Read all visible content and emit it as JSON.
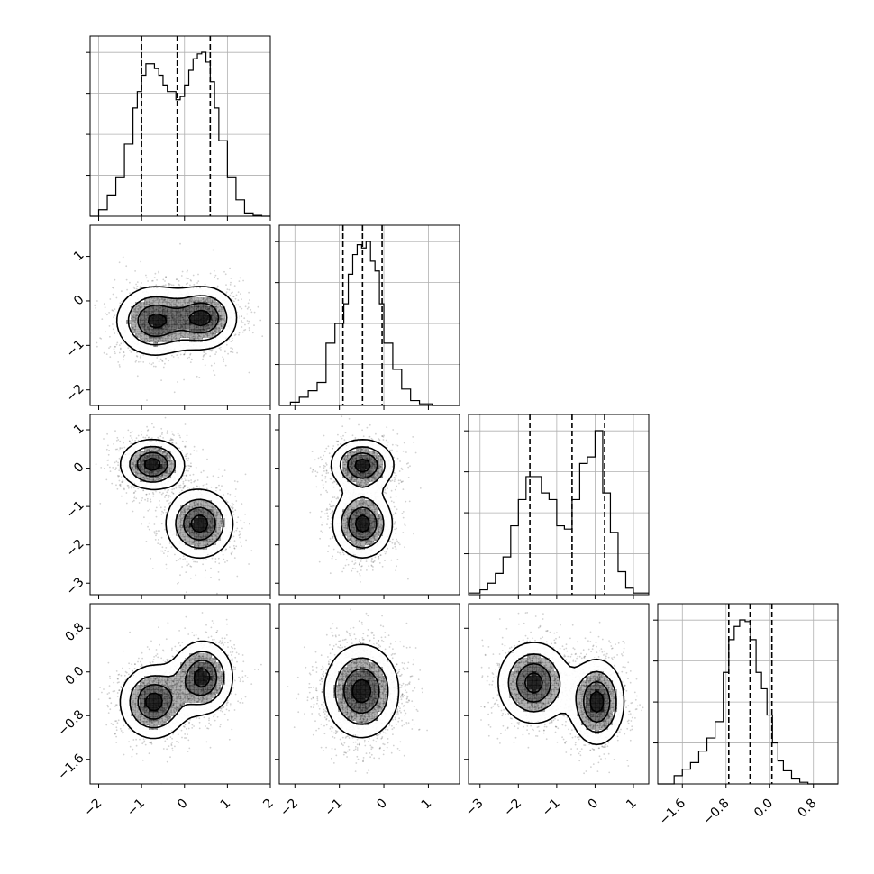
{
  "chart_data": {
    "type": "corner",
    "n_params": 4,
    "title": "",
    "params": [
      {
        "range": [
          -2.2,
          2.0
        ],
        "ticks": [
          -2,
          -1,
          0,
          1,
          2
        ],
        "tick_labels": [
          "−2",
          "−1",
          "0",
          "1",
          "2"
        ],
        "quantiles": [
          -1.0,
          -0.17,
          0.6
        ],
        "hist": {
          "edges": [
            -2.2,
            -2.0,
            -1.8,
            -1.6,
            -1.4,
            -1.2,
            -1.1,
            -1.0,
            -0.9,
            -0.8,
            -0.7,
            -0.6,
            -0.5,
            -0.4,
            -0.3,
            -0.2,
            -0.1,
            0.0,
            0.1,
            0.2,
            0.3,
            0.4,
            0.5,
            0.6,
            0.7,
            0.8,
            1.0,
            1.2,
            1.4,
            1.6,
            1.8,
            2.0
          ],
          "counts": [
            0.0,
            0.04,
            0.13,
            0.24,
            0.44,
            0.66,
            0.76,
            0.86,
            0.93,
            0.93,
            0.9,
            0.86,
            0.8,
            0.76,
            0.76,
            0.71,
            0.73,
            0.8,
            0.89,
            0.96,
            0.99,
            1.0,
            0.94,
            0.82,
            0.66,
            0.46,
            0.24,
            0.1,
            0.02,
            0.005,
            0.0
          ]
        }
      },
      {
        "range": [
          -2.35,
          1.7
        ],
        "ticks": [
          -2,
          -1,
          0,
          1
        ],
        "tick_labels": [
          "−2",
          "−1",
          "0",
          "1"
        ],
        "quantiles": [
          -0.92,
          -0.48,
          -0.04
        ],
        "hist": {
          "edges": [
            -2.35,
            -2.1,
            -1.9,
            -1.7,
            -1.5,
            -1.3,
            -1.1,
            -0.9,
            -0.8,
            -0.7,
            -0.6,
            -0.5,
            -0.4,
            -0.3,
            -0.2,
            -0.1,
            0.0,
            0.2,
            0.4,
            0.6,
            0.8,
            1.1,
            1.4,
            1.7
          ],
          "counts": [
            0.0,
            0.02,
            0.05,
            0.09,
            0.14,
            0.38,
            0.5,
            0.62,
            0.8,
            0.92,
            0.98,
            0.96,
            1.0,
            0.88,
            0.82,
            0.62,
            0.38,
            0.22,
            0.1,
            0.03,
            0.01,
            0.0,
            0.0
          ]
        }
      },
      {
        "range": [
          -3.3,
          1.4
        ],
        "ticks": [
          -3,
          -2,
          -1,
          0,
          1
        ],
        "tick_labels": [
          "−3",
          "−2",
          "−1",
          "0",
          "1"
        ],
        "quantiles": [
          -1.7,
          -0.6,
          0.25
        ],
        "hist": {
          "edges": [
            -3.3,
            -3.0,
            -2.8,
            -2.6,
            -2.4,
            -2.2,
            -2.0,
            -1.8,
            -1.6,
            -1.4,
            -1.2,
            -1.0,
            -0.8,
            -0.6,
            -0.4,
            -0.2,
            0.0,
            0.2,
            0.4,
            0.6,
            0.8,
            1.0,
            1.4
          ],
          "counts": [
            0.01,
            0.03,
            0.07,
            0.13,
            0.23,
            0.42,
            0.58,
            0.72,
            0.72,
            0.62,
            0.58,
            0.42,
            0.4,
            0.58,
            0.8,
            0.84,
            1.0,
            0.62,
            0.38,
            0.14,
            0.04,
            0.01
          ]
        }
      },
      {
        "range": [
          -2.05,
          1.25
        ],
        "ticks": [
          -1.6,
          -0.8,
          0.0,
          0.8
        ],
        "tick_labels": [
          "−1.6",
          "−0.8",
          "0.0",
          "0.8"
        ],
        "quantiles": [
          -0.75,
          -0.36,
          0.04
        ],
        "hist": {
          "edges": [
            -2.05,
            -1.75,
            -1.6,
            -1.45,
            -1.3,
            -1.15,
            -1.0,
            -0.85,
            -0.75,
            -0.65,
            -0.55,
            -0.45,
            -0.35,
            -0.25,
            -0.15,
            -0.05,
            0.05,
            0.15,
            0.25,
            0.4,
            0.55,
            0.7,
            0.85,
            1.25
          ],
          "counts": [
            0.0,
            0.05,
            0.09,
            0.13,
            0.2,
            0.28,
            0.38,
            0.68,
            0.88,
            0.96,
            1.0,
            0.99,
            0.88,
            0.68,
            0.58,
            0.42,
            0.25,
            0.14,
            0.08,
            0.03,
            0.01,
            0.0,
            0.0
          ]
        }
      }
    ],
    "joint": {
      "1_0": {
        "blobs": [
          {
            "cx": -0.7,
            "cy": -0.45,
            "sx": 0.48,
            "sy": 0.42,
            "w": 1.0
          },
          {
            "cx": 0.45,
            "cy": -0.38,
            "sx": 0.42,
            "sy": 0.38,
            "w": 1.0
          }
        ]
      },
      "2_0": {
        "blobs": [
          {
            "cx": -0.75,
            "cy": 0.1,
            "sx": 0.4,
            "sy": 0.35,
            "w": 1.0
          },
          {
            "cx": 0.35,
            "cy": -1.45,
            "sx": 0.42,
            "sy": 0.48,
            "w": 1.0
          }
        ]
      },
      "2_1": {
        "blobs": [
          {
            "cx": -0.48,
            "cy": 0.08,
            "sx": 0.38,
            "sy": 0.36,
            "w": 1.0
          },
          {
            "cx": -0.48,
            "cy": -1.45,
            "sx": 0.36,
            "sy": 0.48,
            "w": 1.0
          }
        ]
      },
      "3_0": {
        "blobs": [
          {
            "cx": -0.72,
            "cy": -0.55,
            "sx": 0.42,
            "sy": 0.36,
            "w": 1.0
          },
          {
            "cx": 0.42,
            "cy": -0.1,
            "sx": 0.38,
            "sy": 0.36,
            "w": 1.0
          }
        ]
      },
      "3_1": {
        "blobs": [
          {
            "cx": -0.5,
            "cy": -0.35,
            "sx": 0.45,
            "sy": 0.46,
            "w": 1.0
          }
        ]
      },
      "3_2": {
        "blobs": [
          {
            "cx": -1.6,
            "cy": -0.2,
            "sx": 0.5,
            "sy": 0.4,
            "w": 1.0
          },
          {
            "cx": 0.05,
            "cy": -0.55,
            "sx": 0.38,
            "sy": 0.42,
            "w": 1.0
          }
        ]
      }
    },
    "contour_levels": [
      0.18,
      0.42,
      0.68,
      0.9
    ],
    "colors": {
      "line": "#000000",
      "grid": "#b0b0b0",
      "density": "#000000"
    }
  }
}
